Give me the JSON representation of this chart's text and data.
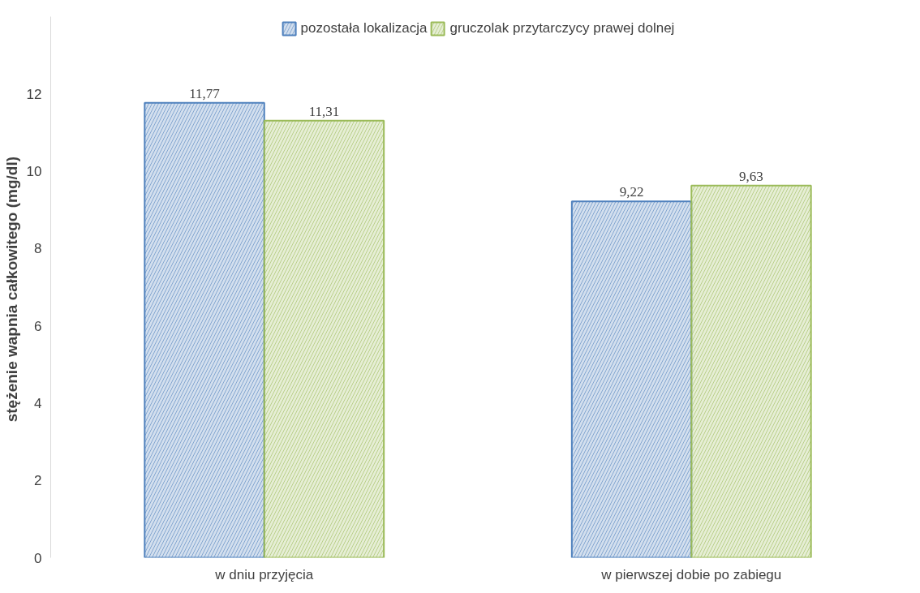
{
  "chart_data": {
    "type": "bar",
    "ylabel": "stężenie wapnia całkowitego  (mg/dl)",
    "categories": [
      "w dniu przyjęcia",
      "w pierwszej dobie po zabiegu"
    ],
    "series": [
      {
        "name": "pozostała lokalizacja",
        "color": "#4f81bd",
        "values": [
          11.77,
          9.22
        ],
        "value_labels": [
          "11,77",
          "9,22"
        ]
      },
      {
        "name": "gruczolak przytarczycy prawej dolnej",
        "color": "#9bbb59",
        "values": [
          11.31,
          9.63
        ],
        "value_labels": [
          "11,31",
          "9,63"
        ]
      }
    ],
    "ylim": [
      0,
      14
    ],
    "yticks": [
      0,
      2,
      4,
      6,
      8,
      10,
      12
    ],
    "grid": false,
    "legend": "top"
  }
}
